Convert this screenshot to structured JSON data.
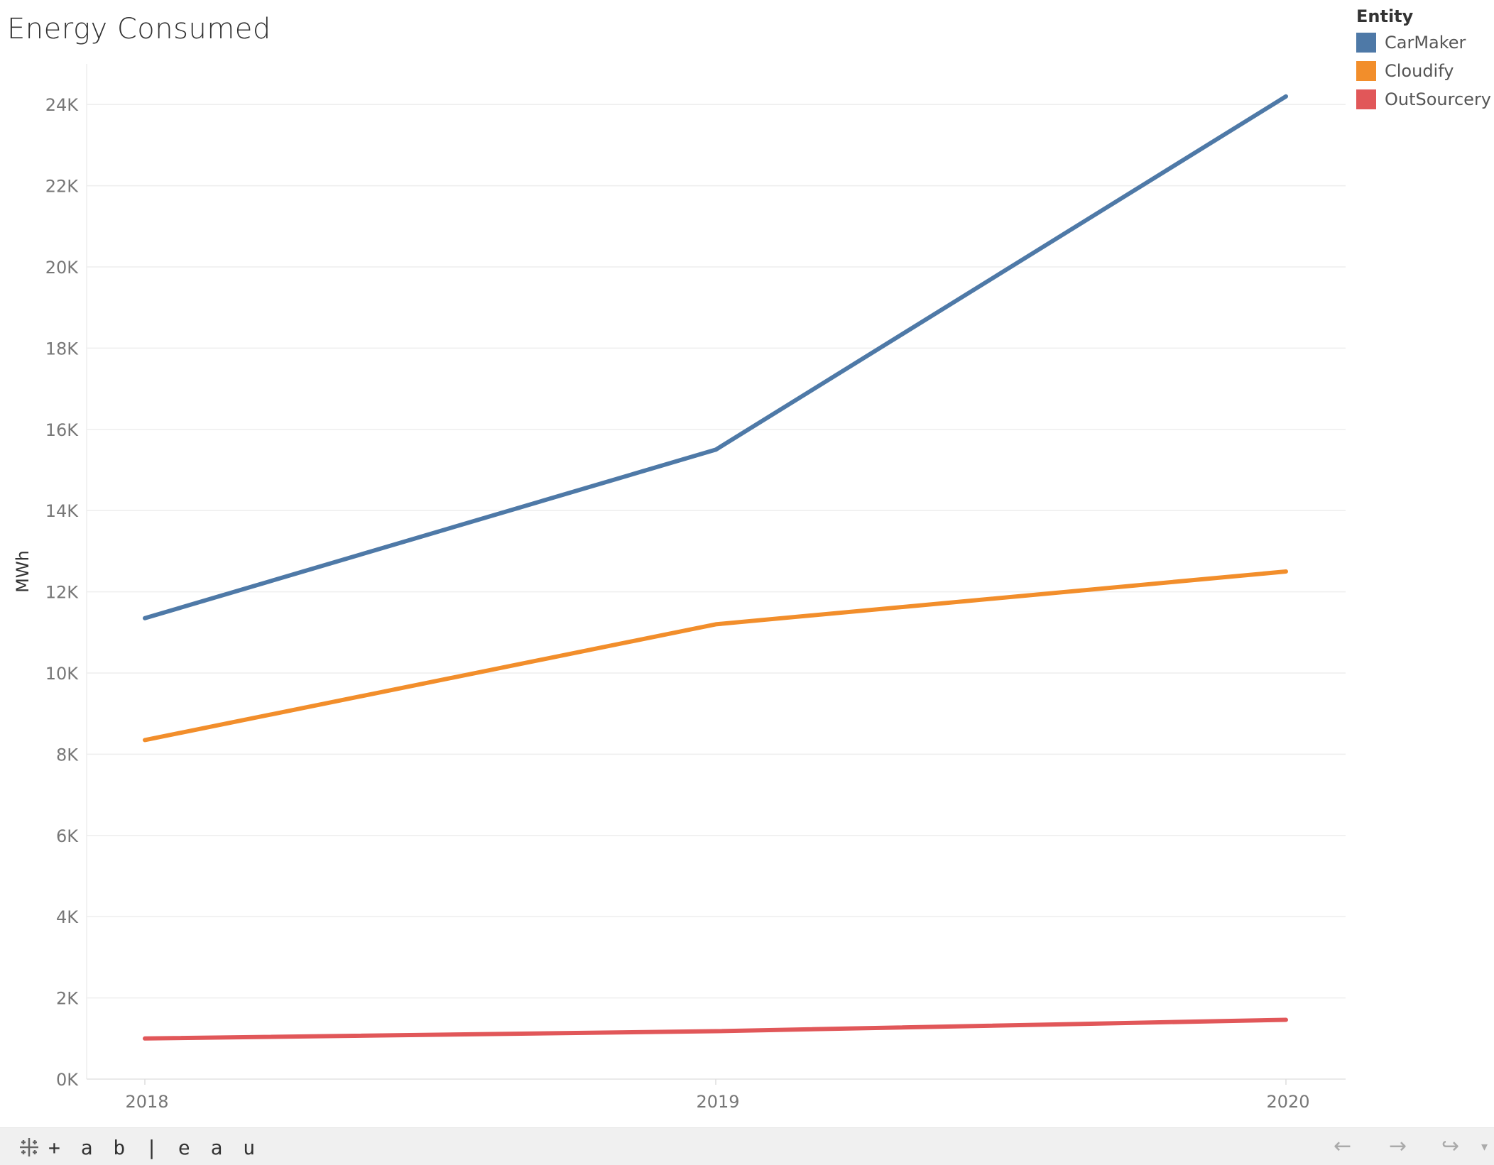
{
  "chart_data": {
    "type": "line",
    "title": "Energy Consumed",
    "xlabel": "",
    "ylabel": "MWh",
    "x": [
      "2018",
      "2019",
      "2020"
    ],
    "ylim": [
      0,
      25000
    ],
    "yticks": [
      0,
      2000,
      4000,
      6000,
      8000,
      10000,
      12000,
      14000,
      16000,
      18000,
      20000,
      22000,
      24000
    ],
    "ytick_labels": [
      "0K",
      "2K",
      "4K",
      "6K",
      "8K",
      "10K",
      "12K",
      "14K",
      "16K",
      "18K",
      "20K",
      "22K",
      "24K"
    ],
    "grid": true,
    "legend": {
      "title": "Entity",
      "position": "top-right"
    },
    "series": [
      {
        "name": "CarMaker",
        "color": "#4e79a7",
        "values": [
          11350,
          15500,
          24200
        ]
      },
      {
        "name": "Cloudify",
        "color": "#f28e2b",
        "values": [
          8350,
          11200,
          12500
        ]
      },
      {
        "name": "OutSourcery",
        "color": "#e15759",
        "values": [
          1000,
          1180,
          1460
        ]
      }
    ]
  },
  "footer": {
    "brand": "+ a b | e a u",
    "icons": [
      "tableau-logo-icon",
      "back-arrow-icon",
      "forward-arrow-icon",
      "share-icon",
      "dropdown-icon"
    ]
  }
}
